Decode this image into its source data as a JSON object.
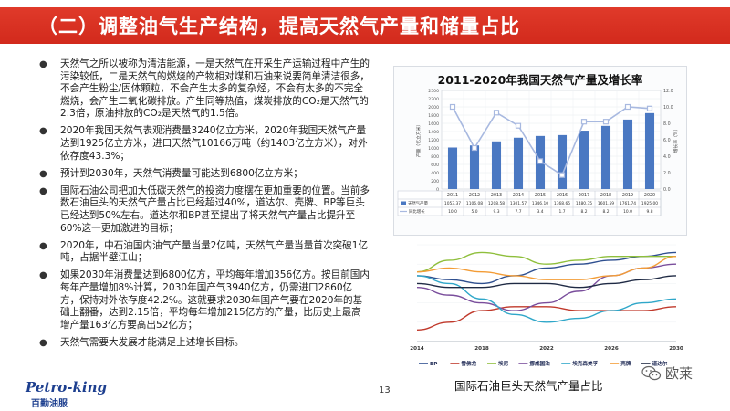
{
  "slide": {
    "title": "（二）调整油气生产结构，提高天然气产量和储量占比",
    "page_number": "13"
  },
  "bullets": [
    "天然气之所以被称为清洁能源，一是天然气在开采生产运输过程中产生的污染较低，二是天然气的燃烧的产物相对煤和石油来说要简单清洁很多，不会产生粉尘/固体颗粒，不会产生太多的复杂烃，不会有太多的不完全燃烧，会产生二氧化碳排放。产生同等热值，煤炭排放的CO₂是天然气的2.3倍，原油排放的CO₂是天然气的1.5倍。",
    "2020年我国天然气表观消费量3240亿立方米，2020年我国天然气产量达到1925亿立方米，进口天然气10166万吨（约1403亿立方米），对外依存度43.3%；",
    "预计到2030年，天然气消费量可能达到6800亿立方米；",
    "国际石油公司把加大低碳天然气的投资力度摆在更加重要的位置。当前多数石油巨头的天然气产量占比已经超过40%，道达尔、壳牌、BP等巨头已经达到50%左右。道达尔和BP甚至提出了将天然气产量占比提升至60%这一更加激进的目标；",
    "2020年，中石油国内油气产量当量2亿吨，天然气产量当量首次突破1亿吨，占据半壁江山；",
    "如果2030年消费量达到6800亿方，平均每年增加356亿方。按目前国内每年产量增加8%计算，2030年国产气3940亿方，仍需进口2860亿方，保持对外依存度42.2%。这就要求2030年国产气要在2020年的基础上翻番，达到2.15倍，平均每年增加215亿方的产量，比历史上最高增产量163亿方要高出52亿方；",
    "天然气需要大发展才能满足上述增长目标。"
  ],
  "logo": {
    "en": "Petro-king",
    "cn": "百勤油服"
  },
  "watermark": {
    "text": "欧莱"
  },
  "chart_data": [
    {
      "type": "bar",
      "title": "2011-2020年我国天然气产量及增长率",
      "ylabel": "产量（亿立方米）",
      "y2label": "增长率（%）",
      "categories": [
        "2011",
        "2012",
        "2013",
        "2014",
        "2015",
        "2016",
        "2017",
        "2018",
        "2019",
        "2020"
      ],
      "ylim": [
        0,
        2500
      ],
      "y2lim": [
        0,
        12.0
      ],
      "series": [
        {
          "name": "天然气产量",
          "kind": "bar",
          "color": "#4a78c2",
          "values": [
            1053.37,
            1106.08,
            1208.58,
            1301.57,
            1346.1,
            1368.65,
            1480.35,
            1601.59,
            1761.74,
            1925.0
          ]
        },
        {
          "name": "同比增长",
          "kind": "line",
          "axis": "right",
          "color": "#a8b9e0",
          "values": [
            10.0,
            5.0,
            9.3,
            7.7,
            3.4,
            1.7,
            8.2,
            8.2,
            10.0,
            9.8
          ]
        }
      ],
      "value_labels": [
        "1053.37",
        "1106.08",
        "1208.58",
        "1301.57",
        "1346.10",
        "1368.65",
        "1480.35",
        "1601.59",
        "1761.74",
        "1925.00"
      ],
      "growth_labels": [
        "10.0",
        "5.0",
        "9.3",
        "7.7",
        "3.4",
        "1.7",
        "8.2",
        "8.2",
        "10.0",
        "9.8"
      ],
      "table_row_labels": [
        "天然气产量",
        "同比增长"
      ],
      "yticks": [
        "0",
        "200",
        "400",
        "600",
        "800",
        "1000",
        "1200",
        "1400",
        "1600",
        "1800",
        "2000",
        "2200",
        "2500"
      ],
      "y2ticks": [
        "0.0",
        "2.0",
        "4.0",
        "6.0",
        "8.0",
        "10.0",
        "12.0"
      ]
    },
    {
      "type": "line",
      "caption": "国际石油巨头天然气产量占比",
      "x_ticks": [
        "2014",
        "2018",
        "2022",
        "2026",
        "2030"
      ],
      "xlim": [
        2014,
        2030
      ],
      "ylim": [
        30,
        55
      ],
      "series": [
        {
          "name": "BP",
          "color": "#2e4f8f",
          "x": [
            2014,
            2016,
            2018,
            2020,
            2022,
            2024,
            2026,
            2028,
            2030
          ],
          "values": [
            47,
            46,
            45,
            47,
            49,
            50,
            51,
            52,
            53
          ]
        },
        {
          "name": "雪佛龙",
          "color": "#c0392b",
          "x": [
            2014,
            2016,
            2018,
            2020,
            2022,
            2024,
            2026,
            2028,
            2030
          ],
          "values": [
            33,
            35,
            38,
            39,
            39,
            38,
            38,
            38,
            39
          ]
        },
        {
          "name": "埃尼",
          "color": "#8fbf3c",
          "x": [
            2014,
            2016,
            2018,
            2020,
            2022,
            2024,
            2026,
            2028,
            2030
          ],
          "values": [
            48,
            51,
            53,
            52,
            50,
            51,
            52,
            52,
            52
          ]
        },
        {
          "name": "挪威国油",
          "color": "#7a4e9c",
          "x": [
            2014,
            2016,
            2018,
            2020,
            2022,
            2024,
            2026,
            2028,
            2030
          ],
          "values": [
            44,
            42,
            40,
            38,
            40,
            43,
            47,
            49,
            50
          ]
        },
        {
          "name": "埃克森美孚",
          "color": "#2fa7c9",
          "x": [
            2014,
            2016,
            2018,
            2020,
            2022,
            2024,
            2026,
            2028,
            2030
          ],
          "values": [
            47,
            45,
            41,
            37,
            35,
            36,
            38,
            40,
            41
          ]
        },
        {
          "name": "壳牌",
          "color": "#f39c36",
          "x": [
            2014,
            2016,
            2018,
            2020,
            2022,
            2024,
            2026,
            2028,
            2030
          ],
          "values": [
            48,
            49,
            48,
            47,
            46,
            46,
            47,
            49,
            52
          ]
        },
        {
          "name": "道达尔",
          "color": "#1f2a44",
          "x": [
            2014,
            2016,
            2018,
            2020,
            2022,
            2024,
            2026,
            2028,
            2030
          ],
          "values": [
            45,
            44,
            44,
            45,
            45,
            44,
            45,
            46,
            47
          ]
        }
      ]
    }
  ]
}
